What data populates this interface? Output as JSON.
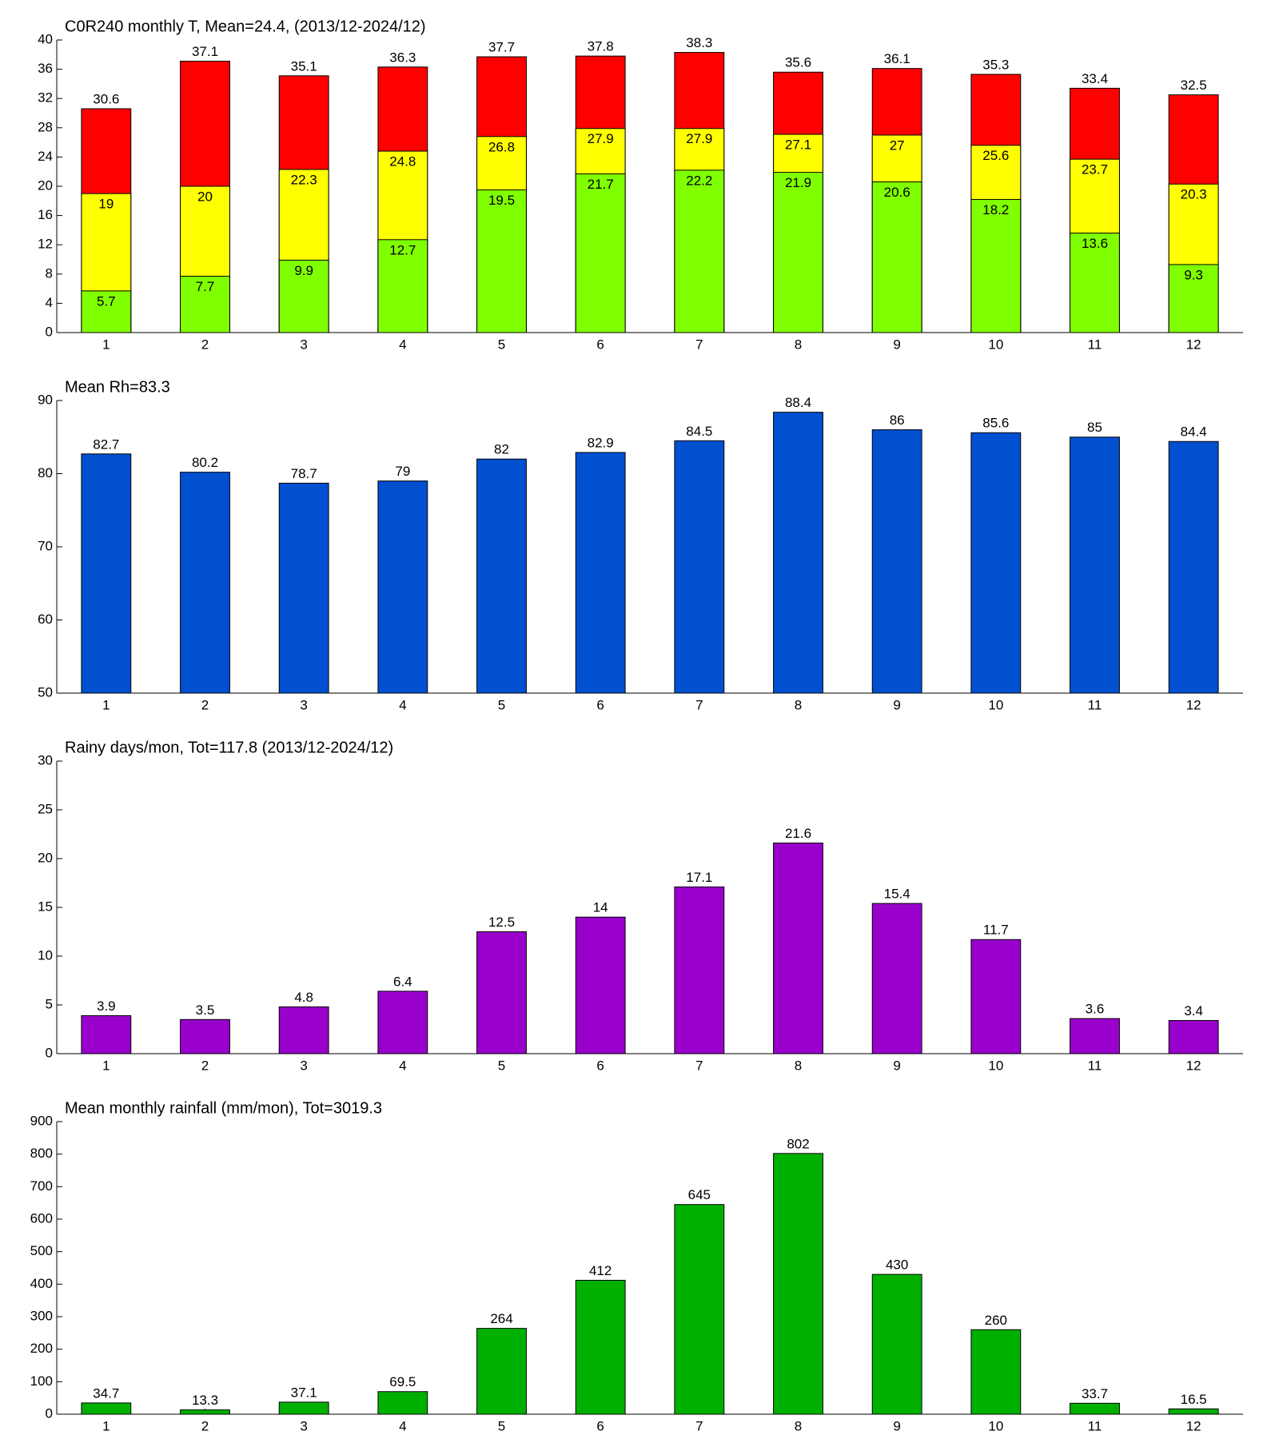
{
  "chart_data": [
    {
      "type": "bar",
      "title": "C0R240 monthly T, Mean=24.4, (2013/12-2024/12)",
      "categories": [
        1,
        2,
        3,
        4,
        5,
        6,
        7,
        8,
        9,
        10,
        11,
        12
      ],
      "series": [
        {
          "color": "#80ff00",
          "values": [
            5.7,
            7.7,
            9.9,
            12.7,
            19.5,
            21.7,
            22.2,
            21.9,
            20.6,
            18.2,
            13.6,
            9.3
          ]
        },
        {
          "color": "#ffff00",
          "values": [
            19,
            20,
            22.3,
            24.8,
            26.8,
            27.9,
            27.9,
            27.1,
            27,
            25.6,
            23.7,
            20.3
          ]
        },
        {
          "color": "#ff0000",
          "values": [
            30.6,
            37.1,
            35.1,
            36.3,
            37.7,
            37.8,
            38.3,
            35.6,
            36.1,
            35.3,
            33.4,
            32.5
          ]
        }
      ],
      "ylim": [
        0,
        40
      ],
      "yticks": [
        0,
        4,
        8,
        12,
        16,
        20,
        24,
        28,
        32,
        36,
        40
      ]
    },
    {
      "type": "bar",
      "title": "Mean Rh=83.3",
      "categories": [
        1,
        2,
        3,
        4,
        5,
        6,
        7,
        8,
        9,
        10,
        11,
        12
      ],
      "series": [
        {
          "color": "#0050d0",
          "values": [
            82.7,
            80.2,
            78.7,
            79,
            82,
            82.9,
            84.5,
            88.4,
            86,
            85.6,
            85,
            84.4
          ]
        }
      ],
      "ylim": [
        50,
        90
      ],
      "yticks": [
        50,
        60,
        70,
        80,
        90
      ]
    },
    {
      "type": "bar",
      "title": "Rainy days/mon, Tot=117.8 (2013/12-2024/12)",
      "categories": [
        1,
        2,
        3,
        4,
        5,
        6,
        7,
        8,
        9,
        10,
        11,
        12
      ],
      "series": [
        {
          "color": "#9900cc",
          "values": [
            3.9,
            3.5,
            4.8,
            6.4,
            12.5,
            14,
            17.1,
            21.6,
            15.4,
            11.7,
            3.6,
            3.4
          ]
        }
      ],
      "ylim": [
        0,
        30
      ],
      "yticks": [
        0,
        5,
        10,
        15,
        20,
        25,
        30
      ]
    },
    {
      "type": "bar",
      "title": "Mean monthly rainfall (mm/mon), Tot=3019.3",
      "categories": [
        1,
        2,
        3,
        4,
        5,
        6,
        7,
        8,
        9,
        10,
        11,
        12
      ],
      "series": [
        {
          "color": "#00b000",
          "values": [
            34.7,
            13.3,
            37.1,
            69.5,
            264,
            412,
            645,
            802,
            430,
            260,
            33.7,
            16.5
          ]
        }
      ],
      "ylim": [
        0,
        900
      ],
      "yticks": [
        0,
        100,
        200,
        300,
        400,
        500,
        600,
        700,
        800,
        900
      ]
    }
  ]
}
